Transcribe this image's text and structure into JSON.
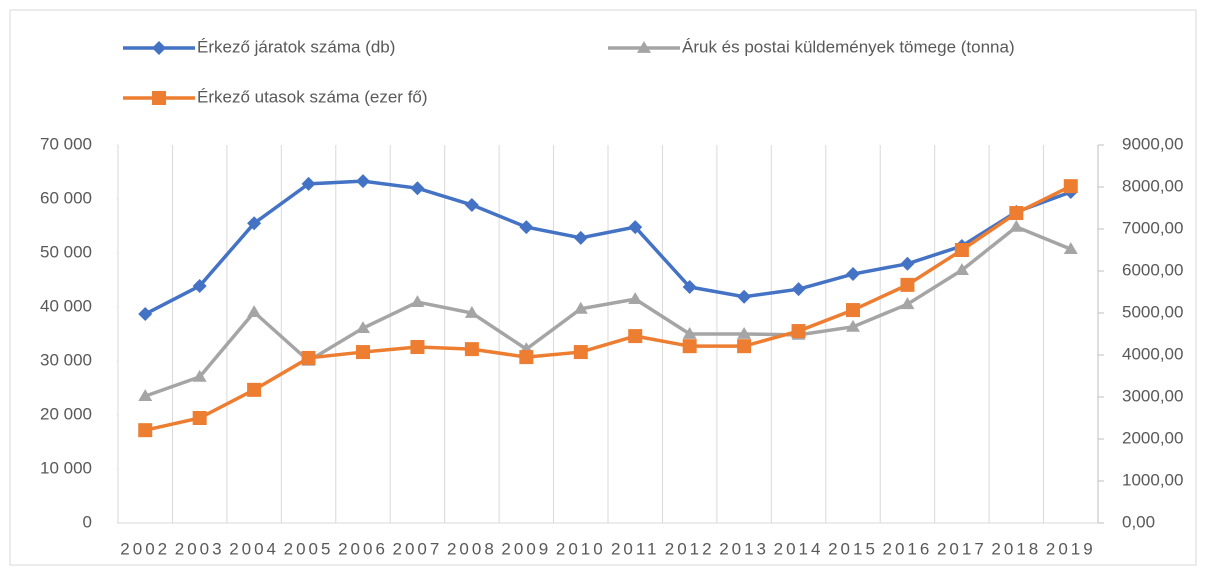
{
  "chart_data": {
    "type": "line",
    "categories": [
      "2002",
      "2003",
      "2004",
      "2005",
      "2006",
      "2007",
      "2008",
      "2009",
      "2010",
      "2011",
      "2012",
      "2013",
      "2014",
      "2015",
      "2016",
      "2017",
      "2018",
      "2019"
    ],
    "series": [
      {
        "name": "Érkező járatok száma (db)",
        "color": "#4472c4",
        "marker": "diamond",
        "axis": "y",
        "values": [
          38700,
          43900,
          55500,
          62800,
          63300,
          62000,
          58900,
          54800,
          52800,
          54800,
          43700,
          41900,
          43300,
          46100,
          48000,
          51300,
          57600,
          61300
        ]
      },
      {
        "name": "Áruk és postai küldemények tömege (tonna)",
        "color": "#a5a5a5",
        "marker": "triangle",
        "axis": "y2",
        "values": [
          3020,
          3480,
          5020,
          3860,
          4640,
          5260,
          5000,
          4140,
          5100,
          5330,
          4500,
          4500,
          4480,
          4670,
          5210,
          6020,
          7050,
          6520
        ]
      },
      {
        "name": "Érkező utasok száma (ezer fő)",
        "color": "#ed7d31",
        "marker": "square",
        "axis": "y2",
        "values": [
          2210,
          2500,
          3170,
          3930,
          4070,
          4190,
          4140,
          3950,
          4070,
          4450,
          4210,
          4210,
          4570,
          5070,
          5670,
          6500,
          7380,
          8020
        ]
      }
    ],
    "ylim": [
      0,
      70000
    ],
    "yticks": [
      0,
      {
        "value": 10000,
        "label": "10 000"
      },
      {
        "value": 20000,
        "label": "20 000"
      },
      {
        "value": 30000,
        "label": "30 000"
      },
      {
        "value": 40000,
        "label": "40 000"
      },
      {
        "value": 50000,
        "label": "50 000"
      },
      {
        "value": 60000,
        "label": "60 000"
      },
      {
        "value": 70000,
        "label": "70 000"
      }
    ],
    "y2lim": [
      0,
      9000
    ],
    "y2ticks": [
      {
        "value": 0,
        "label": "0,00"
      },
      {
        "value": 1000,
        "label": "1000,00"
      },
      {
        "value": 2000,
        "label": "2000,00"
      },
      {
        "value": 3000,
        "label": "3000,00"
      },
      {
        "value": 4000,
        "label": "4000,00"
      },
      {
        "value": 5000,
        "label": "5000,00"
      },
      {
        "value": 6000,
        "label": "6000,00"
      },
      {
        "value": 7000,
        "label": "7000,00"
      },
      {
        "value": 8000,
        "label": "8000,00"
      },
      {
        "value": 9000,
        "label": "9000,00"
      }
    ],
    "grid": "x"
  }
}
